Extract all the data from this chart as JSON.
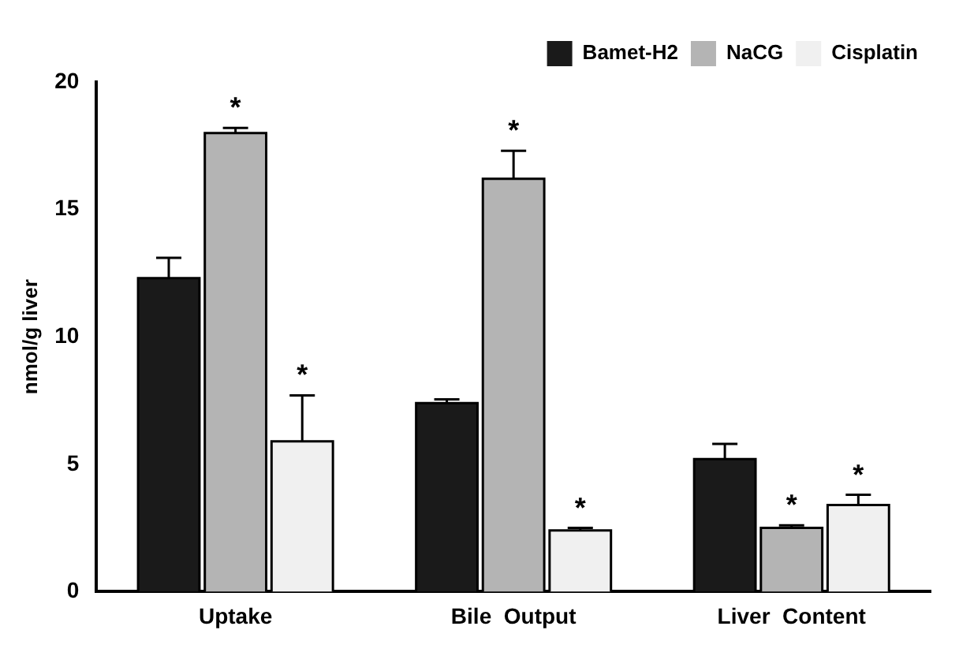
{
  "chart_data": {
    "type": "bar",
    "ylabel": "nmol/g liver",
    "categories": [
      "Uptake",
      "Bile  Output",
      "Liver  Content"
    ],
    "series": [
      {
        "name": "Bamet-H2",
        "color": "#1a1a1a",
        "values": [
          12.3,
          7.4,
          5.2
        ],
        "errors": [
          [
            12.3,
            13.1
          ],
          [
            7.4,
            7.55
          ],
          [
            5.2,
            5.8
          ]
        ],
        "value_labels": [
          null,
          null,
          null
        ]
      },
      {
        "name": "NaCG",
        "color": "#b4b4b4",
        "values": [
          18.0,
          16.2,
          2.5
        ],
        "errors": [
          [
            18.0,
            18.2
          ],
          [
            16.2,
            17.3
          ],
          [
            2.5,
            2.6
          ]
        ],
        "value_labels": [
          "*",
          "*",
          "*"
        ]
      },
      {
        "name": "Cisplatin",
        "color": "#f0f0f0",
        "values": [
          5.9,
          2.4,
          3.4
        ],
        "errors": [
          [
            5.9,
            7.7
          ],
          [
            2.4,
            2.5
          ],
          [
            3.4,
            3.8
          ]
        ],
        "value_labels": [
          "*",
          "*",
          "*"
        ]
      }
    ],
    "ylim": [
      0,
      20
    ],
    "yticks": [
      0,
      5,
      10,
      15,
      20
    ],
    "grid": false,
    "legend": "top right"
  }
}
